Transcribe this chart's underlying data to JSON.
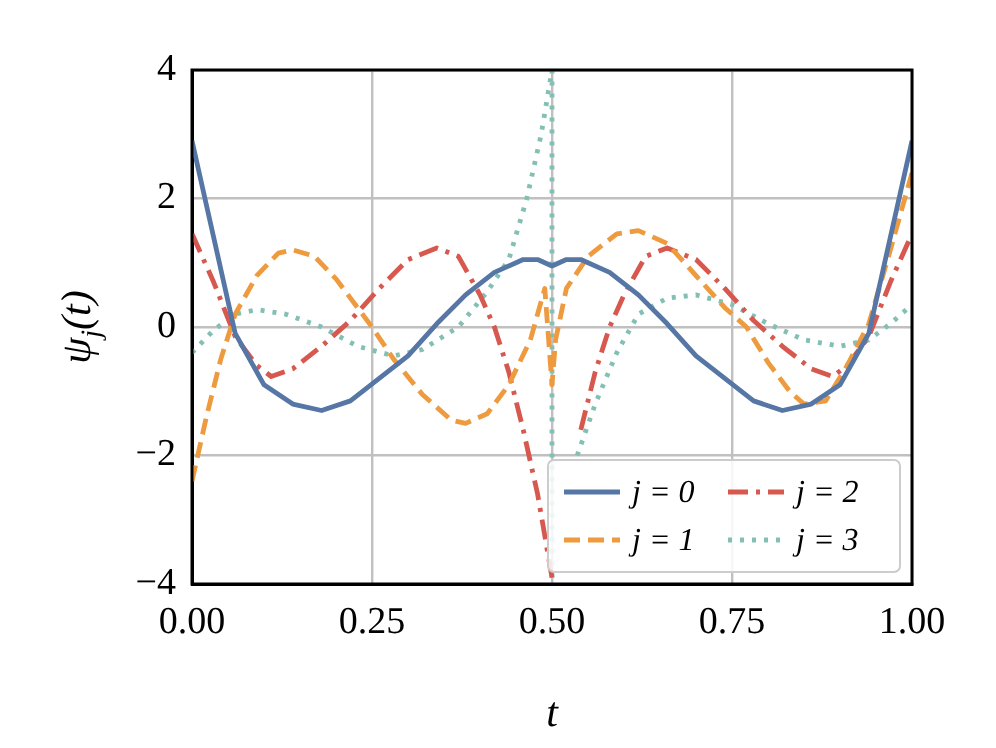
{
  "chart_data": {
    "type": "line",
    "xlabel": "t",
    "ylabel": "ψ$_{j}$(t)",
    "xlim": [
      0,
      1
    ],
    "xticks": [
      {
        "value": 0,
        "label": "0.00"
      },
      {
        "value": 0.25,
        "label": "0.25"
      },
      {
        "value": 0.5,
        "label": "0.50"
      },
      {
        "value": 0.75,
        "label": "0.75"
      },
      {
        "value": 1,
        "label": "1.00"
      }
    ],
    "ylim": [
      -4,
      4
    ],
    "yticks": [
      {
        "value": -4,
        "label": "−4"
      },
      {
        "value": -2,
        "label": "−2"
      },
      0,
      2,
      4
    ],
    "grid": true,
    "legend": "bottom right",
    "marker": "none",
    "series": [
      {
        "name": "j = 0",
        "color": "#5676a5",
        "line_style": "solid",
        "x": [
          0,
          0.02,
          0.04,
          0.06,
          0.1,
          0.14,
          0.18,
          0.22,
          0.26,
          0.3,
          0.34,
          0.38,
          0.42,
          0.46,
          0.48,
          0.5,
          0.52,
          0.54,
          0.58,
          0.62,
          0.66,
          0.7,
          0.74,
          0.78,
          0.82,
          0.86,
          0.9,
          0.94,
          0.96,
          0.98,
          1
        ],
        "values": [
          2.9,
          1.9,
          0.9,
          -0.1,
          -0.9,
          -1.2,
          -1.3,
          -1.15,
          -0.8,
          -0.45,
          0.05,
          0.5,
          0.85,
          1.05,
          1.05,
          0.95,
          1.05,
          1.05,
          0.85,
          0.5,
          0.05,
          -0.45,
          -0.8,
          -1.15,
          -1.3,
          -1.2,
          -0.9,
          -0.1,
          0.9,
          1.9,
          2.9
        ]
      },
      {
        "name": "j = 1",
        "color": "#ee9a3f",
        "line_style": "dashed",
        "x": [
          0,
          0.02,
          0.04,
          0.06,
          0.09,
          0.12,
          0.14,
          0.17,
          0.2,
          0.23,
          0.25,
          0.28,
          0.32,
          0.36,
          0.38,
          0.41,
          0.44,
          0.47,
          0.49,
          0.5,
          0.505,
          0.52,
          0.55,
          0.59,
          0.62,
          0.66,
          0.7,
          0.74,
          0.77,
          0.8,
          0.83,
          0.85,
          0.88,
          0.91,
          0.94,
          0.97,
          1
        ],
        "values": [
          -2.4,
          -1.4,
          -0.5,
          0.2,
          0.8,
          1.15,
          1.2,
          1.1,
          0.75,
          0.3,
          0.0,
          -0.5,
          -1.05,
          -1.45,
          -1.5,
          -1.35,
          -0.9,
          -0.2,
          0.6,
          -0.9,
          -0.2,
          0.6,
          1.1,
          1.45,
          1.5,
          1.3,
          0.8,
          0.3,
          0.0,
          -0.55,
          -1.0,
          -1.2,
          -1.15,
          -0.6,
          0.05,
          1.2,
          2.4
        ]
      },
      {
        "name": "j = 2",
        "color": "#d6584f",
        "line_style": "dashdot",
        "x": [
          0,
          0.03,
          0.06,
          0.09,
          0.11,
          0.14,
          0.18,
          0.22,
          0.26,
          0.3,
          0.34,
          0.37,
          0.4,
          0.42,
          0.44,
          0.46,
          0.48,
          0.5,
          0.52,
          0.54,
          0.56,
          0.58,
          0.6,
          0.63,
          0.66,
          0.7,
          0.74,
          0.78,
          0.82,
          0.86,
          0.89,
          0.91,
          0.94,
          0.97,
          1
        ],
        "values": [
          1.45,
          0.7,
          -0.15,
          -0.6,
          -0.77,
          -0.65,
          -0.3,
          0.1,
          0.6,
          1.05,
          1.23,
          1.1,
          0.5,
          0.0,
          -0.7,
          -1.6,
          -2.6,
          -3.9,
          null,
          -1.6,
          -0.7,
          0.0,
          0.5,
          1.1,
          1.23,
          1.05,
          0.6,
          0.1,
          -0.3,
          -0.65,
          -0.77,
          -0.6,
          -0.15,
          0.7,
          1.45
        ]
      },
      {
        "name": "j = 3",
        "color": "#84bfb4",
        "line_style": "dotted",
        "x": [
          0,
          0.03,
          0.06,
          0.09,
          0.13,
          0.18,
          0.23,
          0.28,
          0.32,
          0.37,
          0.41,
          0.44,
          0.465,
          0.485,
          0.5,
          0.5,
          0.515,
          0.535,
          0.56,
          0.59,
          0.62,
          0.66,
          0.7,
          0.75,
          0.8,
          0.85,
          0.9,
          0.94,
          0.97,
          1
        ],
        "values": [
          -0.4,
          -0.05,
          0.2,
          0.27,
          0.2,
          0.0,
          -0.3,
          -0.45,
          -0.35,
          0.0,
          0.55,
          1.05,
          2.0,
          3.0,
          4.0,
          -4.0,
          null,
          -2.0,
          -1.2,
          -0.4,
          0.2,
          0.45,
          0.5,
          0.35,
          0.05,
          -0.2,
          -0.3,
          -0.2,
          0.05,
          0.35
        ]
      }
    ]
  }
}
